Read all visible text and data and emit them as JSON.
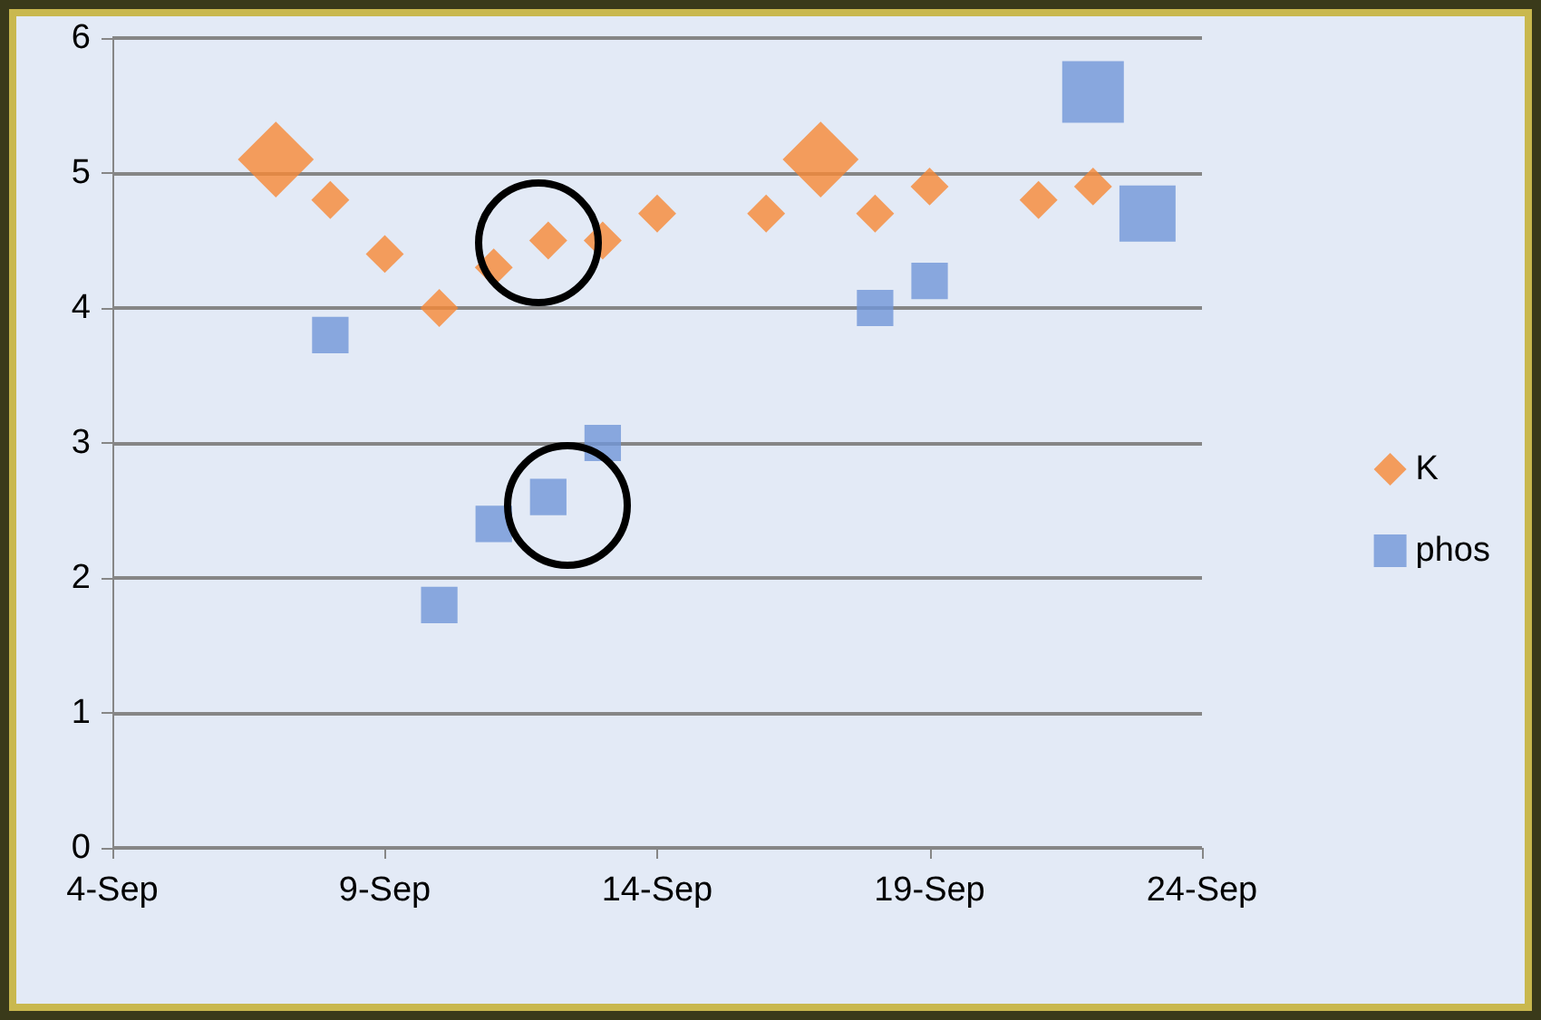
{
  "chart_data": {
    "type": "bubble",
    "x": [
      "--09-07",
      "--09-08",
      "--09-09",
      "--09-10",
      "--09-11",
      "--09-12",
      "--09-13",
      "--09-14",
      "--09-16",
      "--09-17",
      "--09-18",
      "--09-19",
      "--09-21",
      "--09-22"
    ],
    "series": [
      {
        "name": "K",
        "color": "#f68836",
        "marker": "diamond",
        "values": [
          5.1,
          4.8,
          4.4,
          4.0,
          4.3,
          4.5,
          4.5,
          4.7,
          4.7,
          5.1,
          4.7,
          4.9,
          4.8,
          4.9
        ],
        "sizes": [
          0.76,
          0.19,
          0.19,
          0.19,
          0.19,
          0.19,
          0.19,
          0.19,
          0.19,
          0.76,
          0.19,
          0.19,
          0.19,
          0.19
        ]
      },
      {
        "name": "phos",
        "color": "#7096d8",
        "marker": "square",
        "x": [
          "--09-08",
          "--09-10",
          "--09-11",
          "--09-12",
          "--09-13",
          "--09-18",
          "--09-19",
          "--09-22",
          "--09-23"
        ],
        "values": [
          3.8,
          1.8,
          2.4,
          2.6,
          3.0,
          4.0,
          4.2,
          5.6,
          4.7
        ],
        "sizes": [
          0.35,
          0.35,
          0.35,
          0.35,
          0.35,
          0.35,
          0.35,
          1,
          0.83
        ]
      }
    ],
    "xlim": [
      "--09-04",
      "--09-24"
    ],
    "xticks": [
      {
        "value": "--09-04",
        "label": "4-Sep"
      },
      {
        "value": "--09-09",
        "label": "9-Sep"
      },
      {
        "value": "--09-14",
        "label": "14-Sep"
      },
      {
        "value": "--09-19",
        "label": "19-Sep"
      },
      {
        "value": "--09-24",
        "label": "24-Sep"
      }
    ],
    "ylim": [
      0,
      6
    ],
    "yticks": [
      0,
      1,
      2,
      3,
      4,
      5,
      6
    ],
    "grid": "y",
    "legend": "right"
  }
}
